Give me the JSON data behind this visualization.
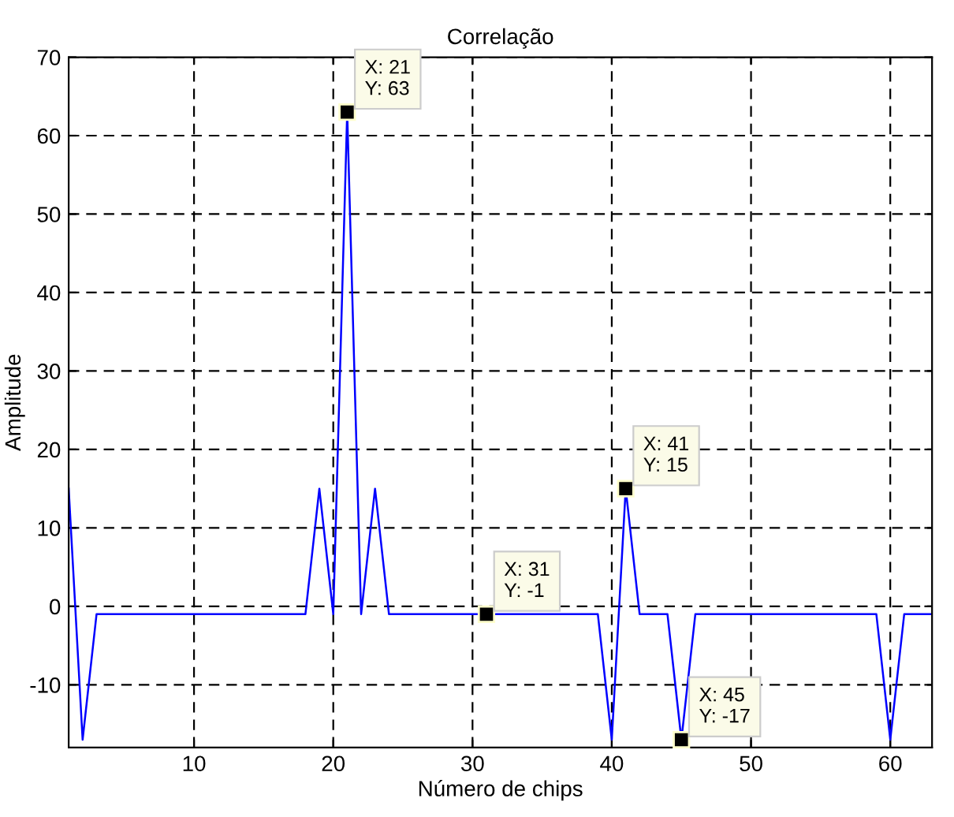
{
  "chart_data": {
    "type": "line",
    "title": "Correlação",
    "xlabel": "Número de chips",
    "ylabel": "Amplitude",
    "x": [
      1,
      2,
      3,
      4,
      5,
      6,
      7,
      8,
      9,
      10,
      11,
      12,
      13,
      14,
      15,
      16,
      17,
      18,
      19,
      20,
      21,
      22,
      23,
      24,
      25,
      26,
      27,
      28,
      29,
      30,
      31,
      32,
      33,
      34,
      35,
      36,
      37,
      38,
      39,
      40,
      41,
      42,
      43,
      44,
      45,
      46,
      47,
      48,
      49,
      50,
      51,
      52,
      53,
      54,
      55,
      56,
      57,
      58,
      59,
      60,
      61,
      62,
      63
    ],
    "series": [
      {
        "color": "#0000ff",
        "values": [
          15,
          -17,
          -1,
          -1,
          -1,
          -1,
          -1,
          -1,
          -1,
          -1,
          -1,
          -1,
          -1,
          -1,
          -1,
          -1,
          -1,
          -1,
          15,
          -1,
          63,
          -1,
          15,
          -1,
          -1,
          -1,
          -1,
          -1,
          -1,
          -1,
          -1,
          -1,
          -1,
          -1,
          -1,
          -1,
          -1,
          -1,
          -1,
          -17,
          15,
          -1,
          -1,
          -1,
          -17,
          -1,
          -1,
          -1,
          -1,
          -1,
          -1,
          -1,
          -1,
          -1,
          -1,
          -1,
          -1,
          -1,
          -1,
          -17,
          -1,
          -1,
          -1
        ]
      }
    ],
    "xlim": [
      1,
      63
    ],
    "ylim": [
      -18,
      70
    ],
    "xticks": [
      10,
      20,
      30,
      40,
      50,
      60
    ],
    "yticks": [
      -10,
      0,
      10,
      20,
      30,
      40,
      50,
      60,
      70
    ],
    "grid": true,
    "line_style": "solid",
    "marker": "none",
    "annotations": [
      {
        "text": "X: 21\nY: 63",
        "x": 21,
        "y": 63
      },
      {
        "text": "X: 31\nY: -1",
        "x": 31,
        "y": -1
      },
      {
        "text": "X: 41\nY: 15",
        "x": 41,
        "y": 15
      },
      {
        "text": "X: 45\nY: -17",
        "x": 45,
        "y": -17
      }
    ]
  }
}
